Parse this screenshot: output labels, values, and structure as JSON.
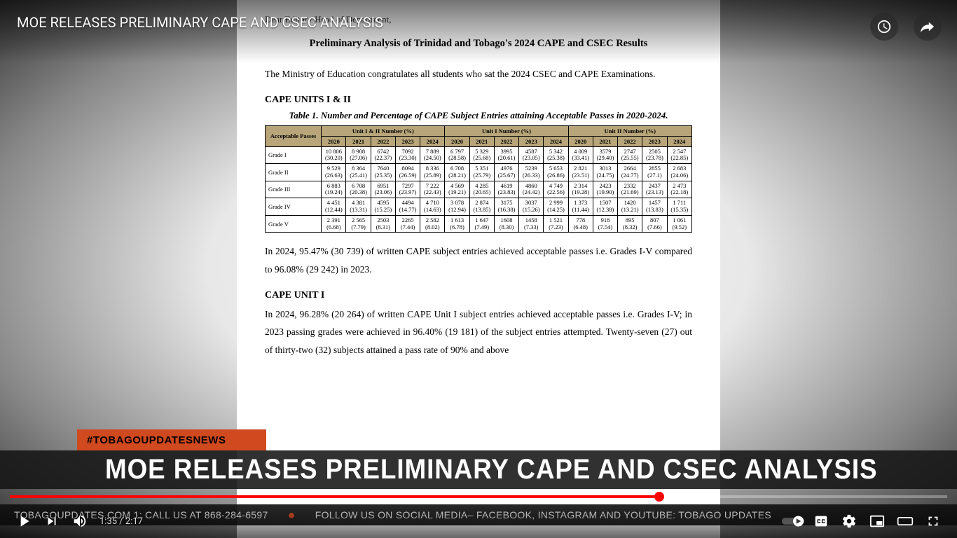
{
  "video": {
    "title_overlay": "MOE RELEASES PRELIMINARY CAPE AND CSEC ANALYSIS",
    "current_time": "1:35",
    "duration": "2:17",
    "progress_percent": 69.3,
    "colors": {
      "progress_played": "#ff0000",
      "progress_bg": "rgba(255,255,255,0.3)",
      "lower_third_bg": "rgba(20,20,20,0.88)",
      "hashtag_bg": "#d0491f"
    }
  },
  "lower_third": {
    "hashtag": "#TOBAGOUPDATESNEWS",
    "headline": "MOE RELEASES PRELIMINARY CAPE AND CSEC ANALYSIS"
  },
  "ticker": {
    "part1": "TOBAGOUPDATES.COM 1: CALL US AT 868-284-6597",
    "part2": "FOLLOW US ON SOCIAL MEDIA– FACEBOOK, INSTAGRAM AND YOUTUBE: TOBAGO UPDATES"
  },
  "document": {
    "greeting": "Dear Editor / Head of Department,",
    "title": "Preliminary Analysis of Trinidad and Tobago's 2024 CAPE and CSEC Results",
    "intro": "The Ministry of Education congratulates all students who sat the 2024 CSEC and CAPE Examinations.",
    "section1_head": "CAPE UNITS I & II",
    "table_caption": "Table 1. Number and Percentage of CAPE Subject Entries attaining Acceptable Passes in 2020-2024.",
    "para_after_table": "In 2024, 95.47% (30 739) of written CAPE subject entries achieved acceptable passes i.e. Grades I-V compared to 96.08% (29 242) in 2023.",
    "section2_head": "CAPE UNIT I",
    "section2_body": "In 2024, 96.28% (20 264) of written CAPE Unit I subject entries achieved acceptable passes i.e. Grades I-V; in 2023 passing grades were achieved in 96.40% (19 181) of the subject entries attempted.  Twenty-seven (27) out of thirty-two (32) subjects attained a pass rate of 90% and above"
  },
  "table": {
    "header_bg": "#b8a67a",
    "corner_label": "Acceptable Passes",
    "group_headers": [
      "Unit I & II Number (%)",
      "Unit I Number (%)",
      "Unit II Number (%)"
    ],
    "years": [
      "2020",
      "2021",
      "2022",
      "2023",
      "2024",
      "2020",
      "2021",
      "2022",
      "2023",
      "2024",
      "2020",
      "2021",
      "2022",
      "2023",
      "2024"
    ],
    "rows": [
      {
        "label": "Grade I",
        "cells": [
          {
            "n": "10 806",
            "p": "(30.20)"
          },
          {
            "n": "8 908",
            "p": "(27.06)"
          },
          {
            "n": "6742",
            "p": "(22.37)"
          },
          {
            "n": "7092",
            "p": "(23.30)"
          },
          {
            "n": "7 889",
            "p": "(24.50)"
          },
          {
            "n": "6 797",
            "p": "(28.58)"
          },
          {
            "n": "5 329",
            "p": "(25.68)"
          },
          {
            "n": "3995",
            "p": "(20.61)"
          },
          {
            "n": "4587",
            "p": "(23.05)"
          },
          {
            "n": "5 342",
            "p": "(25.38)"
          },
          {
            "n": "4 009",
            "p": "(33.41)"
          },
          {
            "n": "3579",
            "p": "(29.40)"
          },
          {
            "n": "2747",
            "p": "(25.55)"
          },
          {
            "n": "2505",
            "p": "(23.78)"
          },
          {
            "n": "2 547",
            "p": "(22.85)"
          }
        ]
      },
      {
        "label": "Grade II",
        "cells": [
          {
            "n": "9 529",
            "p": "(26.63)"
          },
          {
            "n": "8 364",
            "p": "(25.41)"
          },
          {
            "n": "7640",
            "p": "(25.35)"
          },
          {
            "n": "8094",
            "p": "(26.59)"
          },
          {
            "n": "8 336",
            "p": "(25.89)"
          },
          {
            "n": "6 708",
            "p": "(28.21)"
          },
          {
            "n": "5 351",
            "p": "(25.79)"
          },
          {
            "n": "4976",
            "p": "(25.67)"
          },
          {
            "n": "5239",
            "p": "(26.33)"
          },
          {
            "n": "5 653",
            "p": "(26.86)"
          },
          {
            "n": "2 821",
            "p": "(23.51)"
          },
          {
            "n": "3013",
            "p": "(24.75)"
          },
          {
            "n": "2664",
            "p": "(24.77)"
          },
          {
            "n": "2855",
            "p": "(27.1)"
          },
          {
            "n": "2 683",
            "p": "(24.06)"
          }
        ]
      },
      {
        "label": "Grade III",
        "cells": [
          {
            "n": "6 883",
            "p": "(19.24)"
          },
          {
            "n": "6 708",
            "p": "(20.38)"
          },
          {
            "n": "6951",
            "p": "(23.06)"
          },
          {
            "n": "7297",
            "p": "(23.97)"
          },
          {
            "n": "7 222",
            "p": "(22.43)"
          },
          {
            "n": "4 569",
            "p": "(19.21)"
          },
          {
            "n": "4 285",
            "p": "(20.65)"
          },
          {
            "n": "4619",
            "p": "(23.83)"
          },
          {
            "n": "4860",
            "p": "(24.42)"
          },
          {
            "n": "4 749",
            "p": "(22.56)"
          },
          {
            "n": "2 314",
            "p": "(19.28)"
          },
          {
            "n": "2423",
            "p": "(19.90)"
          },
          {
            "n": "2332",
            "p": "(21.69)"
          },
          {
            "n": "2437",
            "p": "(23.13)"
          },
          {
            "n": "2 473",
            "p": "(22.18)"
          }
        ]
      },
      {
        "label": "Grade IV",
        "cells": [
          {
            "n": "4 451",
            "p": "(12.44)"
          },
          {
            "n": "4 381",
            "p": "(13.31)"
          },
          {
            "n": "4595",
            "p": "(15.25)"
          },
          {
            "n": "4494",
            "p": "(14.77)"
          },
          {
            "n": "4 710",
            "p": "(14.63)"
          },
          {
            "n": "3 078",
            "p": "(12.94)"
          },
          {
            "n": "2 874",
            "p": "(13.85)"
          },
          {
            "n": "3175",
            "p": "(16.38)"
          },
          {
            "n": "3037",
            "p": "(15.26)"
          },
          {
            "n": "2 999",
            "p": "(14.25)"
          },
          {
            "n": "1 373",
            "p": "(11.44)"
          },
          {
            "n": "1507",
            "p": "(12.38)"
          },
          {
            "n": "1420",
            "p": "(13.21)"
          },
          {
            "n": "1457",
            "p": "(13.83)"
          },
          {
            "n": "1 711",
            "p": "(15.35)"
          }
        ]
      },
      {
        "label": "Grade V",
        "cells": [
          {
            "n": "2 391",
            "p": "(6.68)"
          },
          {
            "n": "2 565",
            "p": "(7.79)"
          },
          {
            "n": "2503",
            "p": "(8.31)"
          },
          {
            "n": "2265",
            "p": "(7.44)"
          },
          {
            "n": "2 582",
            "p": "(8.02)"
          },
          {
            "n": "1 613",
            "p": "(6.78)"
          },
          {
            "n": "1 647",
            "p": "(7.49)"
          },
          {
            "n": "1608",
            "p": "(8.30)"
          },
          {
            "n": "1458",
            "p": "(7.33)"
          },
          {
            "n": "1 521",
            "p": "(7.23)"
          },
          {
            "n": "778",
            "p": "(6.48)"
          },
          {
            "n": "918",
            "p": "(7.54)"
          },
          {
            "n": "895",
            "p": "(8.32)"
          },
          {
            "n": "807",
            "p": "(7.66)"
          },
          {
            "n": "1 061",
            "p": "(9.52)"
          }
        ]
      }
    ]
  }
}
